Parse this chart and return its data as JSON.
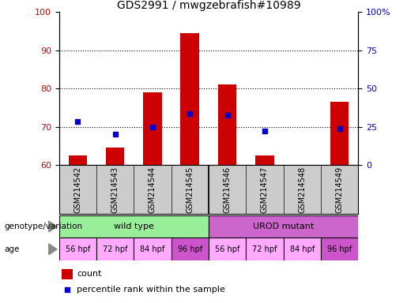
{
  "title": "GDS2991 / mwgzebrafish#10989",
  "samples": [
    "GSM214542",
    "GSM214543",
    "GSM214544",
    "GSM214545",
    "GSM214546",
    "GSM214547",
    "GSM214548",
    "GSM214549"
  ],
  "bar_tops": [
    62.5,
    64.5,
    79.0,
    94.5,
    81.0,
    62.5,
    60.0,
    76.5
  ],
  "bar_bottoms": [
    60.0,
    60.0,
    60.0,
    60.0,
    60.0,
    60.0,
    60.0,
    60.0
  ],
  "percentile_values": [
    71.5,
    68.0,
    70.0,
    73.5,
    73.0,
    69.0,
    null,
    69.5
  ],
  "ylim_left": [
    60,
    100
  ],
  "ylim_right": [
    0,
    100
  ],
  "yticks_left": [
    60,
    70,
    80,
    90,
    100
  ],
  "yticks_right": [
    0,
    25,
    50,
    75,
    100
  ],
  "ytick_labels_right": [
    "0",
    "25",
    "50",
    "75",
    "100%"
  ],
  "bar_color": "#cc0000",
  "percentile_color": "#0000cc",
  "groups": [
    {
      "label": "wild type",
      "start": 0,
      "end": 4,
      "color": "#99ee99"
    },
    {
      "label": "UROD mutant",
      "start": 4,
      "end": 8,
      "color": "#cc66cc"
    }
  ],
  "ages": [
    "56 hpf",
    "72 hpf",
    "84 hpf",
    "96 hpf",
    "56 hpf",
    "72 hpf",
    "84 hpf",
    "96 hpf"
  ],
  "age_colors": [
    "#ffaaff",
    "#ffaaff",
    "#ffaaff",
    "#cc55cc",
    "#ffaaff",
    "#ffaaff",
    "#ffaaff",
    "#cc55cc"
  ],
  "genotype_label": "genotype/variation",
  "age_label": "age",
  "legend_count_label": "count",
  "legend_percentile_label": "percentile rank within the sample",
  "grid_yticks": [
    70,
    80,
    90
  ],
  "left_axis_color": "#cc0000",
  "right_axis_color": "#0000cc",
  "title_fontsize": 10,
  "tick_fontsize": 8,
  "label_fontsize": 8,
  "sample_label_bg": "#cccccc"
}
